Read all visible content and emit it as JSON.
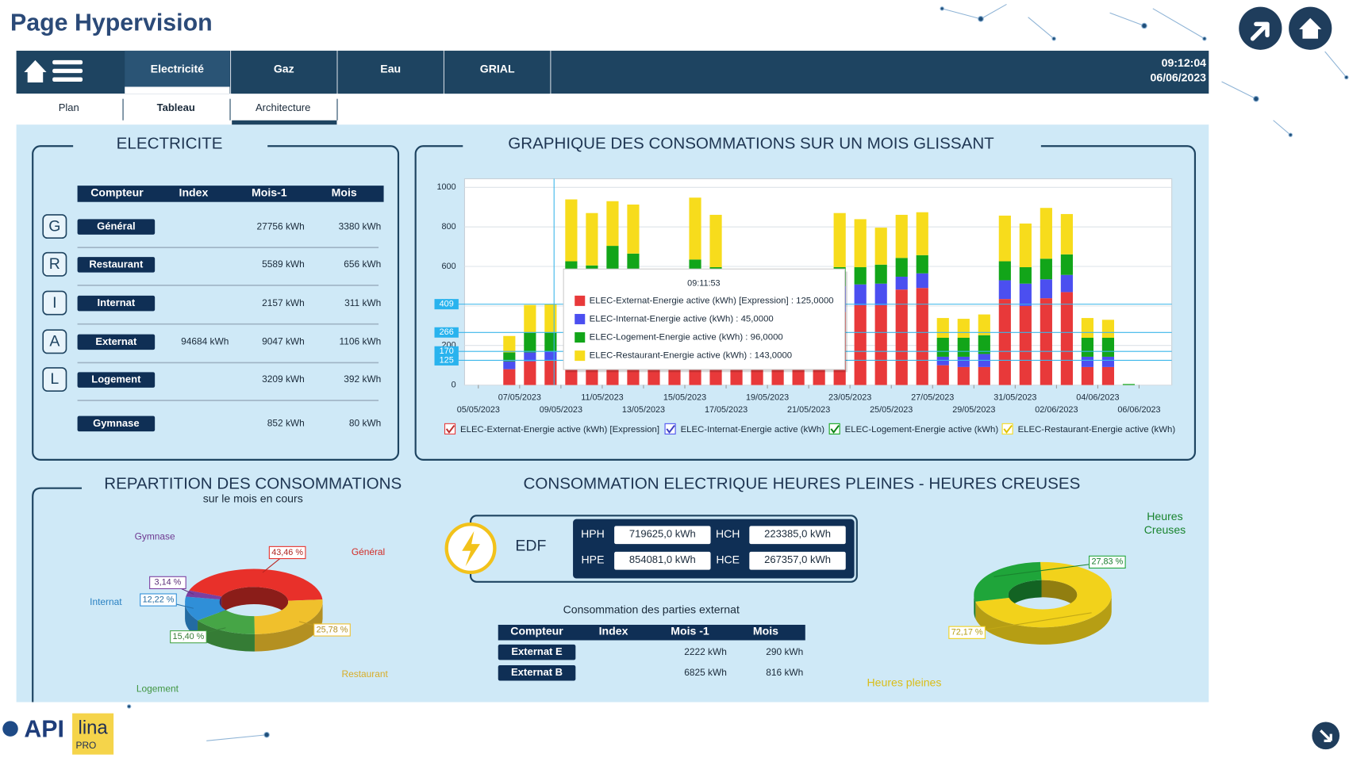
{
  "header": {
    "title": "Page Hypervision",
    "time": "09:12:04",
    "date": "06/06/2023"
  },
  "nav": {
    "tabs": [
      "Electricité",
      "Gaz",
      "Eau",
      "GRIAL"
    ],
    "subtabs": [
      "Plan",
      "Tableau",
      "Architecture"
    ]
  },
  "electricite": {
    "title": "ELECTRICITE",
    "columns": [
      "Compteur",
      "Index",
      "Mois-1",
      "Mois"
    ],
    "rows": [
      {
        "icon": "G",
        "compteur": "Général",
        "mois_1": "27756 kWh",
        "mois": "3380 kWh"
      },
      {
        "icon": "R",
        "compteur": "Restaurant",
        "mois_1": "5589 kWh",
        "mois": "656 kWh"
      },
      {
        "icon": "I",
        "compteur": "Internat",
        "mois_1": "2157 kWh",
        "mois": "311 kWh"
      },
      {
        "icon": "A",
        "compteur": "Externat",
        "index": "94684 kWh",
        "mois_1": "9047 kWh",
        "mois": "1106 kWh"
      },
      {
        "icon": "L",
        "compteur": "Logement",
        "mois_1": "3209 kWh",
        "mois": "392 kWh"
      },
      {
        "compteur": "Gymnase",
        "mois_1": "852 kWh",
        "mois": "80 kWh"
      }
    ]
  },
  "chart_data": [
    {
      "type": "bar",
      "stacked": true,
      "title": "GRAPHIQUE DES CONSOMMATIONS SUR UN MOIS GLISSANT",
      "categories": [
        "05/05/2023",
        null,
        "07/05/2023",
        null,
        "09/05/2023",
        null,
        "11/05/2023",
        null,
        "13/05/2023",
        null,
        "15/05/2023",
        null,
        "17/05/2023",
        null,
        "19/05/2023",
        null,
        "21/05/2023",
        null,
        "23/05/2023",
        null,
        "25/05/2023",
        null,
        "27/05/2023",
        null,
        "29/05/2023",
        null,
        "31/05/2023",
        null,
        "02/06/2023",
        null,
        "04/06/2023",
        null,
        "06/06/2023"
      ],
      "series": [
        {
          "name": "ELEC-Externat-Energie active (kWh) [Expression]",
          "color": "#e8393a",
          "values": [
            0,
            80,
            120,
            125,
            380,
            360,
            390,
            380,
            100,
            95,
            400,
            360,
            110,
            100,
            105,
            100,
            95,
            370,
            404,
            404,
            483,
            491,
            100,
            91,
            91,
            435,
            400,
            439,
            470,
            91,
            91,
            0,
            0
          ]
        },
        {
          "name": "ELEC-Internat-Energie active (kWh)",
          "color": "#4b4ff0",
          "values": [
            0,
            40,
            45,
            45,
            130,
            120,
            130,
            120,
            45,
            45,
            140,
            130,
            45,
            45,
            45,
            45,
            45,
            130,
            105,
            109,
            65,
            74,
            43,
            52,
            66,
            95,
            113,
            96,
            87,
            52,
            52,
            0,
            0
          ]
        },
        {
          "name": "ELEC-Logement-Energie active (kWh)",
          "color": "#12a519",
          "values": [
            0,
            45,
            100,
            96,
            116,
            125,
            184,
            165,
            95,
            95,
            95,
            106,
            95,
            95,
            95,
            95,
            95,
            96,
            87,
            96,
            95,
            92,
            96,
            96,
            95,
            96,
            83,
            104,
            104,
            96,
            96,
            5,
            0
          ]
        },
        {
          "name": "ELEC-Restaurant-Energie active (kWh)",
          "color": "#f7dc1c",
          "values": [
            0,
            83,
            140,
            143,
            313,
            265,
            226,
            248,
            100,
            100,
            313,
            265,
            100,
            100,
            100,
            100,
            100,
            274,
            243,
            187,
            218,
            217,
            100,
            96,
            105,
            231,
            221,
            257,
            204,
            100,
            91,
            0,
            0
          ]
        }
      ],
      "ylim": [
        0,
        1000
      ],
      "yticks": [
        0,
        200,
        400,
        600,
        800,
        1000
      ],
      "grid": true,
      "cursor_values": [
        409,
        266,
        170,
        125
      ],
      "tooltip": {
        "time": "09:11:53",
        "items": [
          "ELEC-Externat-Energie active (kWh) [Expression] : 125,0000",
          "ELEC-Internat-Energie active (kWh) : 45,0000",
          "ELEC-Logement-Energie active (kWh) : 96,0000",
          "ELEC-Restaurant-Energie active (kWh) : 143,0000"
        ]
      }
    },
    {
      "type": "pie",
      "donut": true,
      "title": "REPARTITION DES CONSOMMATIONS",
      "subtitle": "sur le mois en cours",
      "categories": [
        "Général",
        "Restaurant",
        "Logement",
        "Internat",
        "Gymnase"
      ],
      "values": [
        43.46,
        25.78,
        15.4,
        12.22,
        3.14
      ],
      "value_labels": [
        "43,46 %",
        "25,78 %",
        "15,40 %",
        "12,22 %",
        "3,14 %"
      ],
      "colors": [
        "#e8302a",
        "#f0c02c",
        "#46a546",
        "#2f8fd8",
        "#7b3fa0"
      ]
    },
    {
      "type": "pie",
      "donut": true,
      "title": "CONSOMMATION ELECTRIQUE HEURES PLEINES - HEURES CREUSES",
      "categories": [
        "Heures pleines",
        "Heures Creuses"
      ],
      "values": [
        72.17,
        27.83
      ],
      "value_labels": [
        "72,17 %",
        "27,83 %"
      ],
      "colors": [
        "#f2d21b",
        "#1fa53a"
      ]
    }
  ],
  "edf": {
    "name": "EDF",
    "fields": [
      {
        "label": "HPH",
        "value": "719625,0 kWh"
      },
      {
        "label": "HCH",
        "value": "223385,0 kWh"
      },
      {
        "label": "HPE",
        "value": "854081,0 kWh"
      },
      {
        "label": "HCE",
        "value": "267357,0 kWh"
      }
    ]
  },
  "externat": {
    "title": "Consommation des parties externat",
    "columns": [
      "Compteur",
      "Index",
      "Mois -1",
      "Mois"
    ],
    "rows": [
      {
        "compteur": "Externat E",
        "mois_1": "2222 kWh",
        "mois": "290 kWh"
      },
      {
        "compteur": "Externat B",
        "mois_1": "6825 kWh",
        "mois": "816 kWh"
      }
    ]
  },
  "logos": {
    "api": "API",
    "lina": "lina",
    "pro": "PRO"
  }
}
